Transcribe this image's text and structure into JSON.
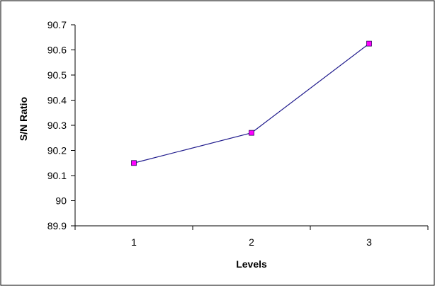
{
  "chart_data": {
    "type": "line",
    "title": "",
    "xlabel": "Levels",
    "ylabel": "S/N Ratio",
    "categories": [
      "1",
      "2",
      "3"
    ],
    "series": [
      {
        "values": [
          90.15,
          90.27,
          90.625
        ]
      }
    ],
    "ylim": [
      89.9,
      90.7
    ],
    "y_ticks": [
      "89.9",
      "90",
      "90.1",
      "90.2",
      "90.3",
      "90.4",
      "90.5",
      "90.6",
      "90.7"
    ],
    "grid": false,
    "legend": "none",
    "line_color": "#1f1a8c",
    "marker_fill": "#ff00ff",
    "marker_edge": "#2b0a5a",
    "frame_color": "#000000"
  }
}
